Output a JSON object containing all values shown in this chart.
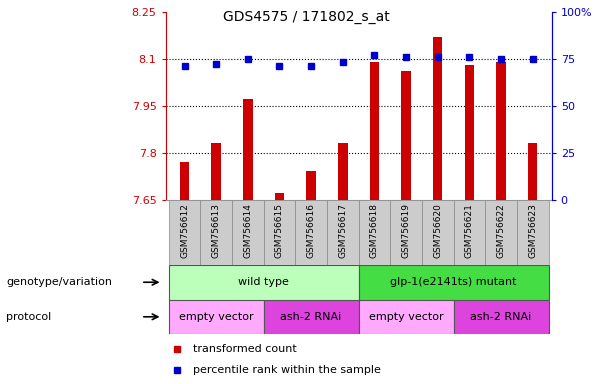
{
  "title": "GDS4575 / 171802_s_at",
  "samples": [
    "GSM756612",
    "GSM756613",
    "GSM756614",
    "GSM756615",
    "GSM756616",
    "GSM756617",
    "GSM756618",
    "GSM756619",
    "GSM756620",
    "GSM756621",
    "GSM756622",
    "GSM756623"
  ],
  "transformed_count": [
    7.77,
    7.83,
    7.97,
    7.67,
    7.74,
    7.83,
    8.09,
    8.06,
    8.17,
    8.08,
    8.09,
    7.83
  ],
  "percentile_rank": [
    71,
    72,
    75,
    71,
    71,
    73,
    77,
    76,
    76,
    76,
    75,
    75
  ],
  "bar_color": "#cc0000",
  "dot_color": "#0000cc",
  "ylim_left": [
    7.65,
    8.25
  ],
  "ylim_right": [
    0,
    100
  ],
  "yticks_left": [
    7.65,
    7.8,
    7.95,
    8.1,
    8.25
  ],
  "ytick_labels_left": [
    "7.65",
    "7.8",
    "7.95",
    "8.1",
    "8.25"
  ],
  "yticks_right": [
    0,
    25,
    50,
    75,
    100
  ],
  "ytick_labels_right": [
    "0",
    "25",
    "50",
    "75",
    "100%"
  ],
  "hlines": [
    7.8,
    7.95,
    8.1
  ],
  "genotype_groups": [
    {
      "label": "wild type",
      "start": 0,
      "end": 6,
      "color": "#bbffbb"
    },
    {
      "label": "glp-1(e2141ts) mutant",
      "start": 6,
      "end": 12,
      "color": "#44dd44"
    }
  ],
  "protocol_groups": [
    {
      "label": "empty vector",
      "start": 0,
      "end": 3,
      "color": "#ffaaff"
    },
    {
      "label": "ash-2 RNAi",
      "start": 3,
      "end": 6,
      "color": "#dd44dd"
    },
    {
      "label": "empty vector",
      "start": 6,
      "end": 9,
      "color": "#ffaaff"
    },
    {
      "label": "ash-2 RNAi",
      "start": 9,
      "end": 12,
      "color": "#dd44dd"
    }
  ],
  "legend_items": [
    {
      "label": "transformed count",
      "color": "#cc0000"
    },
    {
      "label": "percentile rank within the sample",
      "color": "#0000cc"
    }
  ],
  "left_axis_color": "#cc0000",
  "right_axis_color": "#0000cc",
  "genotype_label": "genotype/variation",
  "protocol_label": "protocol",
  "xtick_bg_color": "#cccccc",
  "bar_width": 0.3
}
